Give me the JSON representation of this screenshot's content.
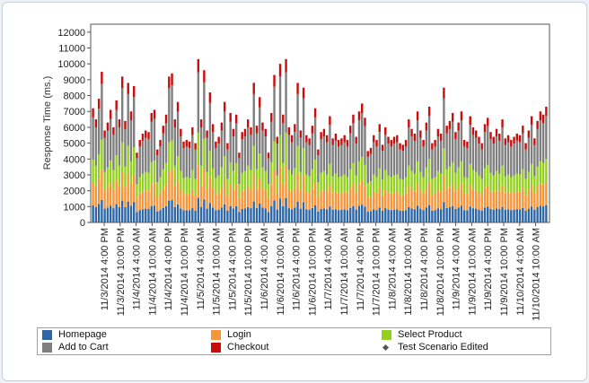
{
  "chart_data": {
    "type": "bar",
    "stacked": true,
    "title": "",
    "xlabel": "",
    "ylabel": "Response Time (ms.)",
    "ylim": [
      0,
      12500
    ],
    "y_ticks": [
      0,
      1000,
      2000,
      3000,
      4000,
      5000,
      6000,
      7000,
      8000,
      9000,
      10000,
      11000,
      12000
    ],
    "x_tick_labels": [
      "11/3/2014 4:00 PM",
      "11/3/2014 10:00 PM",
      "11/4/2014 4:00 AM",
      "11/4/2014 10:00 AM",
      "11/4/2014 4:00 PM",
      "11/4/2014 10:00 PM",
      "11/5/2014 4:00 AM",
      "11/5/2014 10:00 AM",
      "11/5/2014 4:00 PM",
      "11/5/2014 10:00 PM",
      "11/6/2014 4:00 AM",
      "11/6/2014 10:00 AM",
      "11/6/2014 4:00 PM",
      "11/6/2014 10:00 PM",
      "11/7/2014 4:00 AM",
      "11/7/2014 10:00 AM",
      "11/7/2014 4:00 PM",
      "11/7/2014 10:00 PM",
      "11/8/2014 4:00 AM",
      "11/8/2014 10:00 AM",
      "11/8/2014 4:00 PM",
      "11/8/2014 10:00 PM",
      "11/9/2014 4:00 AM",
      "11/9/2014 10:00 AM",
      "11/9/2014 4:00 PM",
      "11/9/2014 10:00 PM",
      "11/10/2014 4:00 AM",
      "11/10/2014 10:00 AM"
    ],
    "grid": false,
    "legend_position": "bottom",
    "bar_totals": [
      7200,
      6500,
      7800,
      9500,
      5800,
      6300,
      7100,
      6000,
      7700,
      6500,
      9200,
      6400,
      8800,
      7000,
      8600,
      4400,
      5200,
      5600,
      5800,
      5700,
      6900,
      7100,
      4600,
      5200,
      6100,
      6800,
      9200,
      9400,
      6500,
      7600,
      5900,
      5100,
      5200,
      5100,
      6000,
      5000,
      10300,
      6500,
      9600,
      5800,
      8200,
      6200,
      5100,
      5400,
      6300,
      7600,
      5000,
      6900,
      5900,
      6800,
      4400,
      5700,
      5900,
      6500,
      6000,
      8800,
      6100,
      7900,
      6300,
      5900,
      4400,
      6900,
      9300,
      5400,
      10000,
      6800,
      10300,
      6000,
      5500,
      6200,
      8800,
      5800,
      8500,
      5500,
      5300,
      6100,
      7200,
      4600,
      5700,
      5900,
      5500,
      6700,
      5300,
      5600,
      5200,
      5300,
      5500,
      5200,
      6100,
      6800,
      5400,
      7000,
      7500,
      6600,
      4500,
      4700,
      5500,
      5200,
      6200,
      4900,
      6000,
      5400,
      5200,
      5400,
      5500,
      5000,
      4900,
      5200,
      6500,
      5900,
      5600,
      7000,
      5800,
      5200,
      6300,
      7300,
      5000,
      5200,
      5900,
      5600,
      8500,
      6100,
      6400,
      6900,
      5700,
      6300,
      7000,
      5200,
      5100,
      6700,
      6000,
      5800,
      5400,
      5000,
      6200,
      6600,
      5700,
      5400,
      5900,
      5600,
      6500,
      5300,
      5500,
      5200,
      5400,
      5600,
      5500,
      6100,
      5000,
      5800,
      6700,
      5300,
      6400,
      7000,
      6800,
      7300
    ],
    "series": [
      {
        "name": "Homepage",
        "color": "#2e67a6",
        "share": 0.15
      },
      {
        "name": "Login",
        "color": "#f7953a",
        "share": 0.2
      },
      {
        "name": "Select Product",
        "color": "#94d11e",
        "share": 0.2
      },
      {
        "name": "Add to Cart",
        "color": "#7f7f7f",
        "share": 0.37
      },
      {
        "name": "Checkout",
        "color": "#c80d0d",
        "share": 0.08
      },
      {
        "name": "Test Scenario Edited",
        "color": "#555555",
        "marker": "diamond"
      }
    ]
  },
  "legend": {
    "homepage": "Homepage",
    "login": "Login",
    "select_product": "Select Product",
    "add_to_cart": "Add to Cart",
    "checkout": "Checkout",
    "test_scenario": "Test Scenario Edited"
  }
}
